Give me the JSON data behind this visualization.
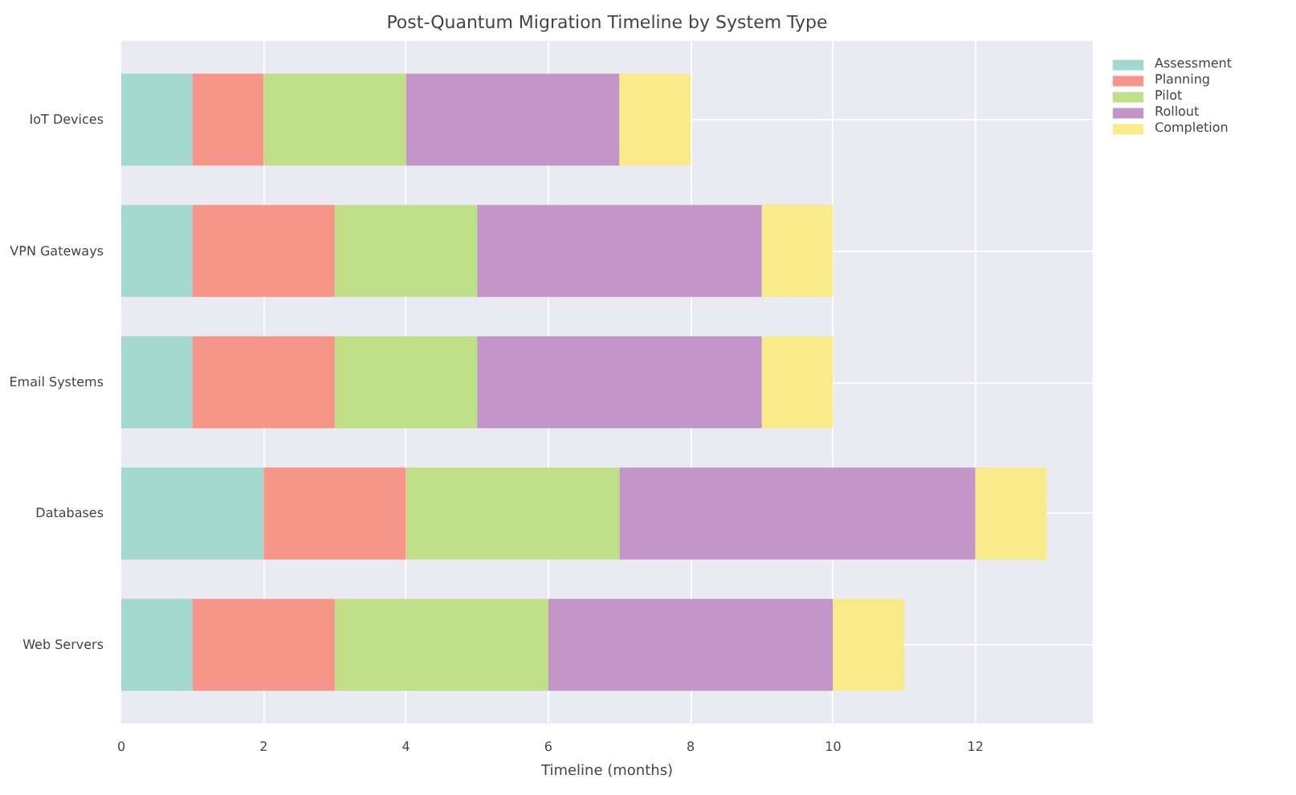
{
  "chart_data": {
    "type": "bar",
    "orientation": "horizontal",
    "stacked": true,
    "title": "Post-Quantum Migration Timeline by System Type",
    "xlabel": "Timeline (months)",
    "categories": [
      "IoT Devices",
      "VPN Gateways",
      "Email Systems",
      "Databases",
      "Web Servers"
    ],
    "series": [
      {
        "name": "Assessment",
        "color": "#a3d8cf",
        "values": [
          1,
          1,
          1,
          2,
          1
        ]
      },
      {
        "name": "Planning",
        "color": "#f6968a",
        "values": [
          1,
          2,
          2,
          2,
          2
        ]
      },
      {
        "name": "Pilot",
        "color": "#c0df86",
        "values": [
          2,
          2,
          2,
          3,
          3
        ]
      },
      {
        "name": "Rollout",
        "color": "#c495c8",
        "values": [
          3,
          4,
          4,
          5,
          4
        ]
      },
      {
        "name": "Completion",
        "color": "#f9ea8a",
        "values": [
          1,
          1,
          1,
          1,
          1
        ]
      }
    ],
    "xlim": [
      0,
      13.65
    ],
    "xticks": [
      0,
      2,
      4,
      6,
      8,
      10,
      12
    ],
    "grid": true,
    "legend": "top right"
  }
}
